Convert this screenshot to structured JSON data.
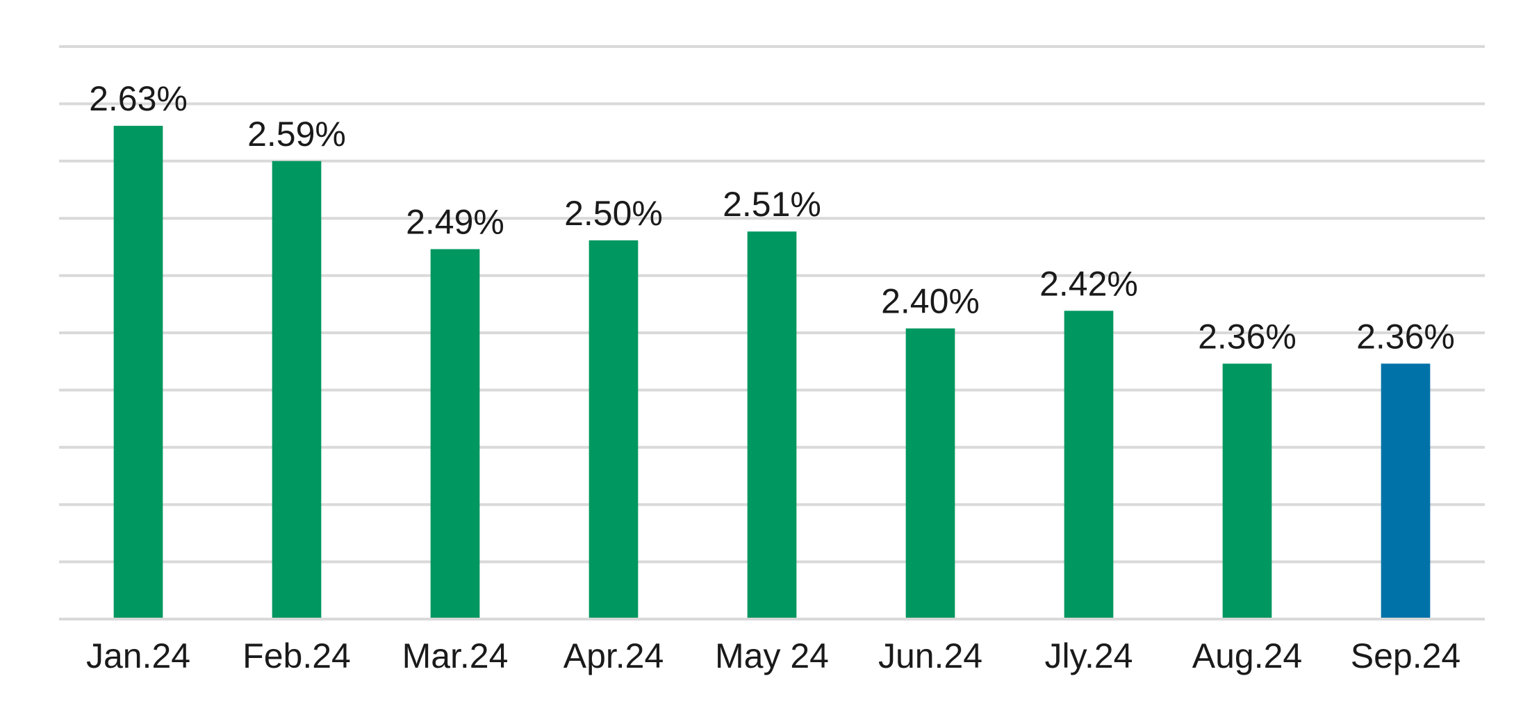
{
  "chart_data": {
    "type": "bar",
    "categories": [
      "Jan.24",
      "Feb.24",
      "Mar.24",
      "Apr.24",
      "May 24",
      "Jun.24",
      "Jly.24",
      "Aug.24",
      "Sep.24"
    ],
    "values": [
      2.63,
      2.59,
      2.49,
      2.5,
      2.51,
      2.4,
      2.42,
      2.36,
      2.36
    ],
    "data_labels": [
      "2.63%",
      "2.59%",
      "2.49%",
      "2.50%",
      "2.51%",
      "2.40%",
      "2.42%",
      "2.36%",
      "2.36%"
    ],
    "bar_colors": [
      "#009760",
      "#009760",
      "#009760",
      "#009760",
      "#009760",
      "#009760",
      "#009760",
      "#009760",
      "#0072A8"
    ],
    "ylim": [
      2.07,
      2.72
    ],
    "gridline_step": 0.065,
    "grid": true,
    "legend": false
  }
}
